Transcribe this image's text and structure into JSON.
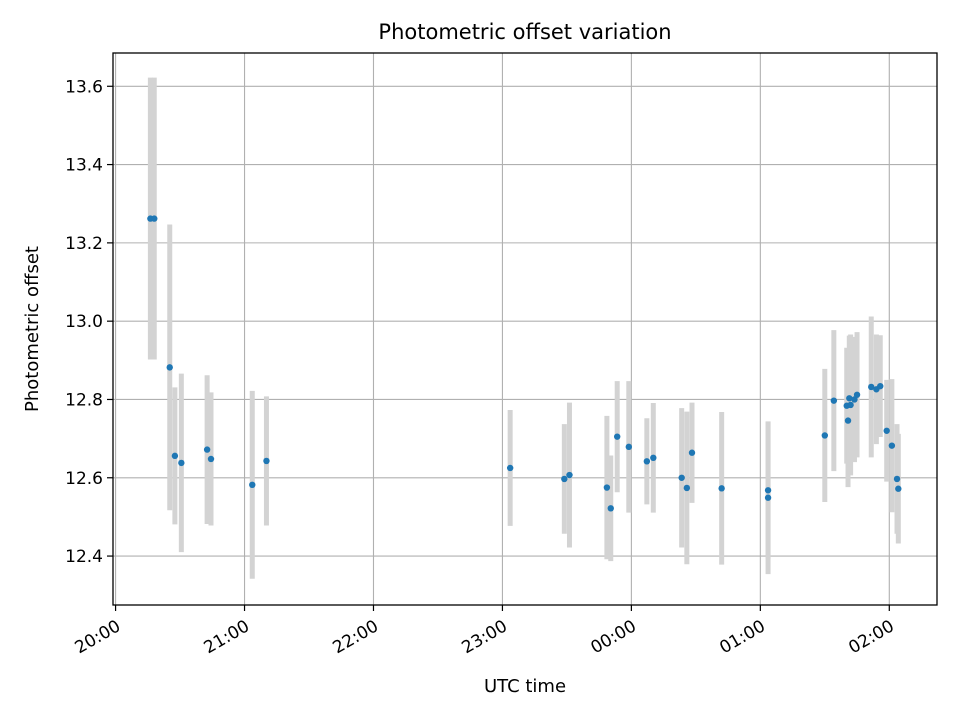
{
  "chart_data": {
    "type": "scatter",
    "title": "Photometric offset variation",
    "xlabel": "UTC time",
    "ylabel": "Photometric offset",
    "x_unit": "UTC time of night (hours; values past 24 fall after midnight)",
    "xlim": [
      19.98,
      26.37
    ],
    "ylim": [
      12.275,
      13.685
    ],
    "x_ticks": [
      {
        "value": 20,
        "label": "20:00"
      },
      {
        "value": 21,
        "label": "21:00"
      },
      {
        "value": 22,
        "label": "22:00"
      },
      {
        "value": 23,
        "label": "23:00"
      },
      {
        "value": 24,
        "label": "00:00"
      },
      {
        "value": 25,
        "label": "01:00"
      },
      {
        "value": 26,
        "label": "02:00"
      }
    ],
    "y_ticks": [
      {
        "value": 12.4,
        "label": "12.4"
      },
      {
        "value": 12.6,
        "label": "12.6"
      },
      {
        "value": 12.8,
        "label": "12.8"
      },
      {
        "value": 13.0,
        "label": "13.0"
      },
      {
        "value": 13.2,
        "label": "13.2"
      },
      {
        "value": 13.4,
        "label": "13.4"
      },
      {
        "value": 13.6,
        "label": "13.6"
      }
    ],
    "grid": true,
    "marker_color": "#1f77b4",
    "errorbar_color": "#d3d3d3",
    "points": [
      {
        "x": 20.27,
        "y": 13.262,
        "err": 0.36
      },
      {
        "x": 20.3,
        "y": 13.262,
        "err": 0.36
      },
      {
        "x": 20.42,
        "y": 12.882,
        "err": 0.365
      },
      {
        "x": 20.46,
        "y": 12.656,
        "err": 0.175
      },
      {
        "x": 20.51,
        "y": 12.638,
        "err": 0.228
      },
      {
        "x": 20.71,
        "y": 12.672,
        "err": 0.19
      },
      {
        "x": 20.74,
        "y": 12.648,
        "err": 0.17
      },
      {
        "x": 21.06,
        "y": 12.582,
        "err": 0.24
      },
      {
        "x": 21.17,
        "y": 12.643,
        "err": 0.165
      },
      {
        "x": 23.06,
        "y": 12.625,
        "err": 0.148
      },
      {
        "x": 23.48,
        "y": 12.597,
        "err": 0.14
      },
      {
        "x": 23.52,
        "y": 12.607,
        "err": 0.185
      },
      {
        "x": 23.81,
        "y": 12.575,
        "err": 0.183
      },
      {
        "x": 23.84,
        "y": 12.522,
        "err": 0.135
      },
      {
        "x": 23.89,
        "y": 12.705,
        "err": 0.142
      },
      {
        "x": 23.98,
        "y": 12.679,
        "err": 0.168
      },
      {
        "x": 24.12,
        "y": 12.642,
        "err": 0.11
      },
      {
        "x": 24.17,
        "y": 12.651,
        "err": 0.14
      },
      {
        "x": 24.39,
        "y": 12.6,
        "err": 0.178
      },
      {
        "x": 24.43,
        "y": 12.574,
        "err": 0.195
      },
      {
        "x": 24.47,
        "y": 12.664,
        "err": 0.128
      },
      {
        "x": 24.7,
        "y": 12.573,
        "err": 0.195
      },
      {
        "x": 25.06,
        "y": 12.568,
        "err": 0.175
      },
      {
        "x": 25.06,
        "y": 12.549,
        "err": 0.195
      },
      {
        "x": 25.5,
        "y": 12.708,
        "err": 0.17
      },
      {
        "x": 25.57,
        "y": 12.797,
        "err": 0.18
      },
      {
        "x": 25.67,
        "y": 12.784,
        "err": 0.148
      },
      {
        "x": 25.68,
        "y": 12.746,
        "err": 0.17
      },
      {
        "x": 25.69,
        "y": 12.803,
        "err": 0.16
      },
      {
        "x": 25.7,
        "y": 12.786,
        "err": 0.18
      },
      {
        "x": 25.73,
        "y": 12.8,
        "err": 0.16
      },
      {
        "x": 25.75,
        "y": 12.812,
        "err": 0.16
      },
      {
        "x": 25.86,
        "y": 12.832,
        "err": 0.18
      },
      {
        "x": 25.9,
        "y": 12.826,
        "err": 0.14
      },
      {
        "x": 25.93,
        "y": 12.834,
        "err": 0.13
      },
      {
        "x": 25.98,
        "y": 12.72,
        "err": 0.13
      },
      {
        "x": 26.02,
        "y": 12.682,
        "err": 0.17
      },
      {
        "x": 26.06,
        "y": 12.597,
        "err": 0.14
      },
      {
        "x": 26.07,
        "y": 12.572,
        "err": 0.14
      }
    ]
  }
}
